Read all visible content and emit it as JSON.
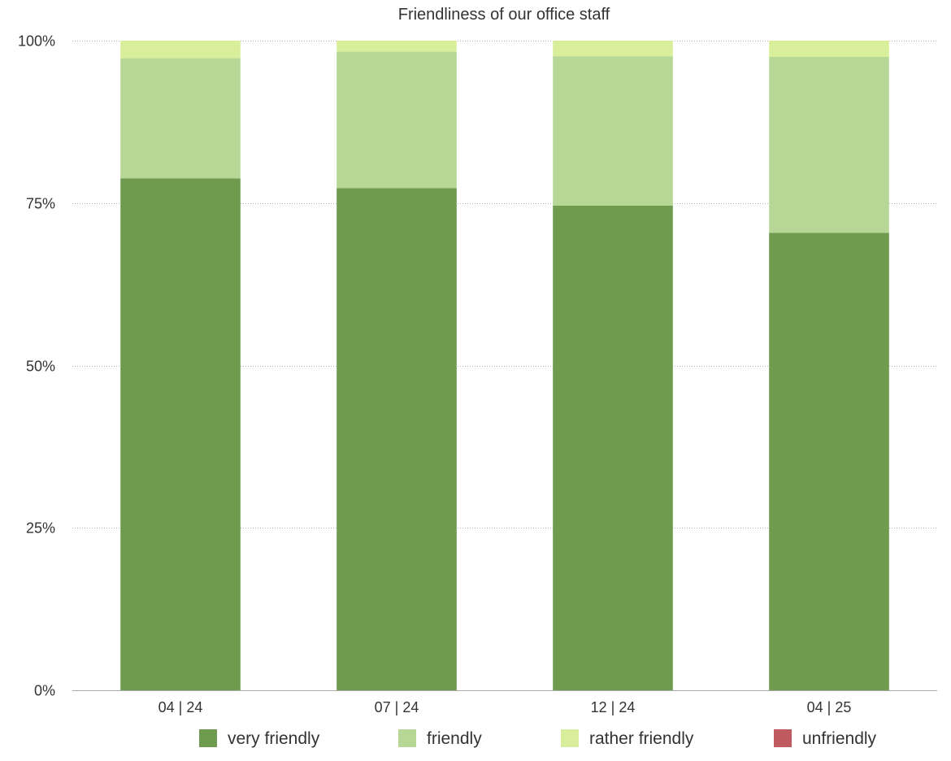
{
  "chart_data": {
    "type": "bar",
    "stacked": true,
    "title": "Friendliness of our office staff",
    "categories": [
      "04 | 24",
      "07 | 24",
      "12 | 24",
      "04 | 25"
    ],
    "series": [
      {
        "name": "very friendly",
        "color": "#6e9b4e",
        "values": [
          78.8,
          77.3,
          74.6,
          70.4
        ]
      },
      {
        "name": "friendly",
        "color": "#b6d795",
        "values": [
          18.5,
          21.0,
          23.0,
          27.1
        ]
      },
      {
        "name": "rather friendly",
        "color": "#d8ee9a",
        "values": [
          2.7,
          1.7,
          2.4,
          2.5
        ]
      },
      {
        "name": "unfriendly",
        "color": "#bf5a60",
        "values": [
          0,
          0,
          0,
          0
        ]
      }
    ],
    "y_ticks": [
      "0%",
      "25%",
      "50%",
      "75%",
      "100%"
    ],
    "ylim": [
      0,
      100
    ],
    "grid": true,
    "legend_position": "bottom"
  }
}
